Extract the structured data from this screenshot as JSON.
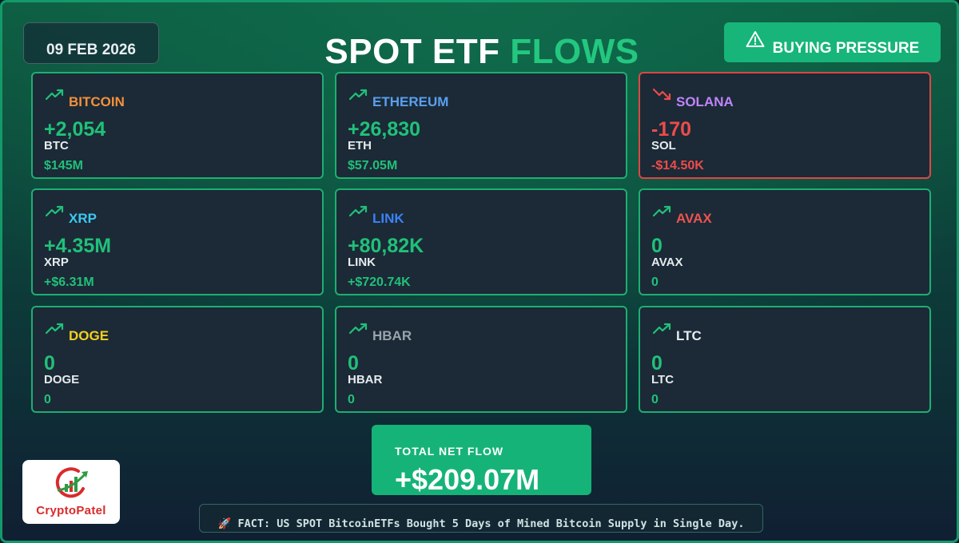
{
  "header": {
    "date": "09 FEB 2026",
    "title_part1": "SPOT ETF",
    "title_part2": "FLOWS",
    "pressure_label": "BUYING PRESSURE",
    "pressure_icon": "warning-icon"
  },
  "colors": {
    "positive": "#21c07a",
    "negative": "#ee4b4b",
    "accent": "#16b378"
  },
  "cards": [
    {
      "name": "BITCOIN",
      "name_color": "#f5903a",
      "amount": "+2,054",
      "ticker": "BTC",
      "usd": "$145M",
      "trend": "up"
    },
    {
      "name": "ETHEREUM",
      "name_color": "#5a9ff0",
      "amount": "+26,830",
      "ticker": "ETH",
      "usd": "$57.05M",
      "trend": "up"
    },
    {
      "name": "SOLANA",
      "name_color": "#c084fc",
      "amount": "-170",
      "ticker": "SOL",
      "usd": "-$14.50K",
      "trend": "down"
    },
    {
      "name": "XRP",
      "name_color": "#3ec7f0",
      "amount": "+4.35M",
      "ticker": "XRP",
      "usd": "+$6.31M",
      "trend": "up"
    },
    {
      "name": "LINK",
      "name_color": "#3b82f6",
      "amount": "+80,82K",
      "ticker": "LINK",
      "usd": "+$720.74K",
      "trend": "up"
    },
    {
      "name": "AVAX",
      "name_color": "#ef5350",
      "amount": "0",
      "ticker": "AVAX",
      "usd": "0",
      "trend": "up"
    },
    {
      "name": "DOGE",
      "name_color": "#f5d020",
      "amount": "0",
      "ticker": "DOGE",
      "usd": "0",
      "trend": "up"
    },
    {
      "name": "HBAR",
      "name_color": "#9aa3ab",
      "amount": "0",
      "ticker": "HBAR",
      "usd": "0",
      "trend": "up"
    },
    {
      "name": "LTC",
      "name_color": "#e6ebee",
      "amount": "0",
      "ticker": "LTC",
      "usd": "0",
      "trend": "up"
    }
  ],
  "total": {
    "label": "TOTAL NET FLOW",
    "value": "+$209.07M"
  },
  "logo": {
    "text": "CryptoPatel"
  },
  "fact": {
    "icon": "rocket-icon",
    "text": "🚀 FACT: US SPOT BitcoinETFs Bought 5 Days of Mined Bitcoin Supply in Single Day."
  }
}
